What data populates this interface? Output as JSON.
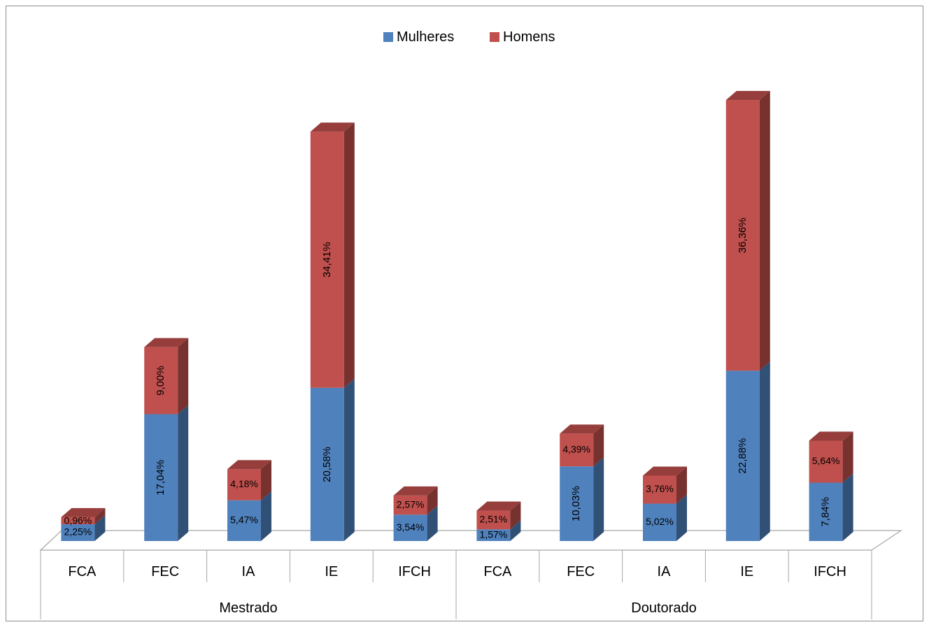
{
  "chart_data": {
    "type": "bar",
    "stacked": true,
    "three_d": true,
    "legend": {
      "position": "top",
      "entries": [
        "Mulheres",
        "Homens"
      ]
    },
    "groups": [
      {
        "label": "Mestrado",
        "categories": [
          "FCA",
          "FEC",
          "IA",
          "IE",
          "IFCH"
        ]
      },
      {
        "label": "Doutorado",
        "categories": [
          "FCA",
          "FEC",
          "IA",
          "IE",
          "IFCH"
        ]
      }
    ],
    "categories": [
      "FCA",
      "FEC",
      "IA",
      "IE",
      "IFCH",
      "FCA",
      "FEC",
      "IA",
      "IE",
      "IFCH"
    ],
    "series": [
      {
        "name": "Mulheres",
        "color": "#4F81BD",
        "values": [
          2.25,
          17.04,
          5.47,
          20.58,
          3.54,
          1.57,
          10.03,
          5.02,
          22.88,
          7.84
        ],
        "labels": [
          "2,25%",
          "17,04%",
          "5,47%",
          "20,58%",
          "3,54%",
          "1,57%",
          "10,03%",
          "5,02%",
          "22,88%",
          "7,84%"
        ]
      },
      {
        "name": "Homens",
        "color": "#C0504D",
        "values": [
          0.96,
          9.0,
          4.18,
          34.41,
          2.57,
          2.51,
          4.39,
          3.76,
          36.36,
          5.64
        ],
        "labels": [
          "0,96%",
          "9,00%",
          "4,18%",
          "34,41%",
          "2,57%",
          "2,51%",
          "4,39%",
          "3,76%",
          "36,36%",
          "5,64%"
        ]
      }
    ],
    "title": "",
    "xlabel": "",
    "ylabel": "",
    "ylim": [
      0,
      60
    ],
    "grid": false
  }
}
